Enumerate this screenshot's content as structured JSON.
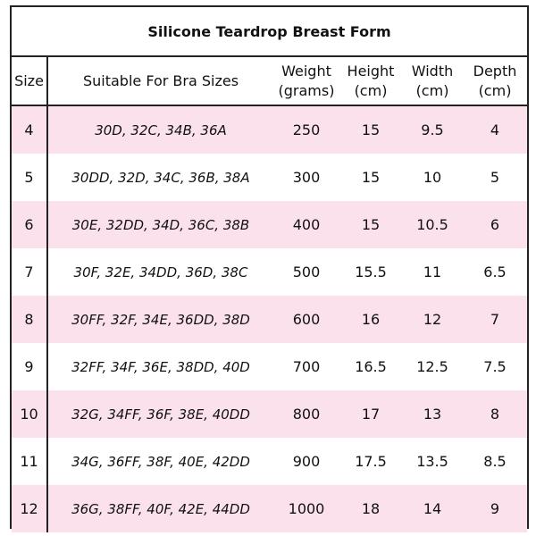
{
  "title": "Silicone Teardrop Breast Form",
  "headers": {
    "size": "Size",
    "bra": "Suitable For Bra Sizes",
    "weight": "Weight",
    "weight_unit": "(grams)",
    "height": "Height",
    "height_unit": "(cm)",
    "width": "Width",
    "width_unit": "(cm)",
    "depth": "Depth",
    "depth_unit": "(cm)"
  },
  "rows": [
    {
      "size": "4",
      "bra": "30D, 32C, 34B, 36A",
      "weight": "250",
      "height": "15",
      "width": "9.5",
      "depth": "4"
    },
    {
      "size": "5",
      "bra": "30DD, 32D, 34C, 36B, 38A",
      "weight": "300",
      "height": "15",
      "width": "10",
      "depth": "5"
    },
    {
      "size": "6",
      "bra": "30E, 32DD, 34D, 36C, 38B",
      "weight": "400",
      "height": "15",
      "width": "10.5",
      "depth": "6"
    },
    {
      "size": "7",
      "bra": "30F, 32E, 34DD, 36D, 38C",
      "weight": "500",
      "height": "15.5",
      "width": "11",
      "depth": "6.5"
    },
    {
      "size": "8",
      "bra": "30FF, 32F, 34E, 36DD, 38D",
      "weight": "600",
      "height": "16",
      "width": "12",
      "depth": "7"
    },
    {
      "size": "9",
      "bra": "32FF, 34F, 36E, 38DD, 40D",
      "weight": "700",
      "height": "16.5",
      "width": "12.5",
      "depth": "7.5"
    },
    {
      "size": "10",
      "bra": "32G, 34FF, 36F, 38E, 40DD",
      "weight": "800",
      "height": "17",
      "width": "13",
      "depth": "8"
    },
    {
      "size": "11",
      "bra": "34G, 36FF, 38F, 40E, 42DD",
      "weight": "900",
      "height": "17.5",
      "width": "13.5",
      "depth": "8.5"
    },
    {
      "size": "12",
      "bra": "36G, 38FF, 40F, 42E, 44DD",
      "weight": "1000",
      "height": "18",
      "width": "14",
      "depth": "9"
    }
  ],
  "colors": {
    "pink_row": "#fbe1ec",
    "border": "#222222"
  }
}
